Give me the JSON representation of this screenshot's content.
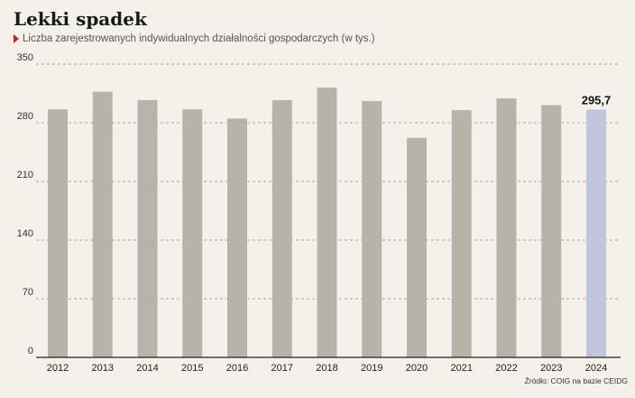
{
  "header": {
    "title": "Lekki spadek",
    "subtitle": "Liczba zarejestrowanych indywidualnych działalności gospodarczych (w tys.)"
  },
  "footer": {
    "source": "Źródło: COIG na bazie CEIDG"
  },
  "colors": {
    "background": "#f4f1ea",
    "bar": "#b6b4a9",
    "highlight_bar": "#c2c6dc",
    "marker": "#d62020"
  },
  "chart_data": {
    "type": "bar",
    "title": "Lekki spadek",
    "subtitle": "Liczba zarejestrowanych indywidualnych działalności gospodarczych (w tys.)",
    "xlabel": "",
    "ylabel": "",
    "categories": [
      "2012",
      "2013",
      "2014",
      "2015",
      "2016",
      "2017",
      "2018",
      "2019",
      "2020",
      "2021",
      "2022",
      "2023",
      "2024"
    ],
    "values": [
      296,
      317,
      307,
      296,
      285,
      307,
      322,
      306,
      262,
      295,
      309,
      301,
      295.7
    ],
    "yticks": [
      "0",
      "70",
      "140",
      "210",
      "280",
      "350"
    ],
    "ylim": [
      0,
      350
    ],
    "grid": true,
    "highlight_index": 12,
    "data_labels": [
      {
        "index": 12,
        "text": "295,7"
      }
    ]
  }
}
